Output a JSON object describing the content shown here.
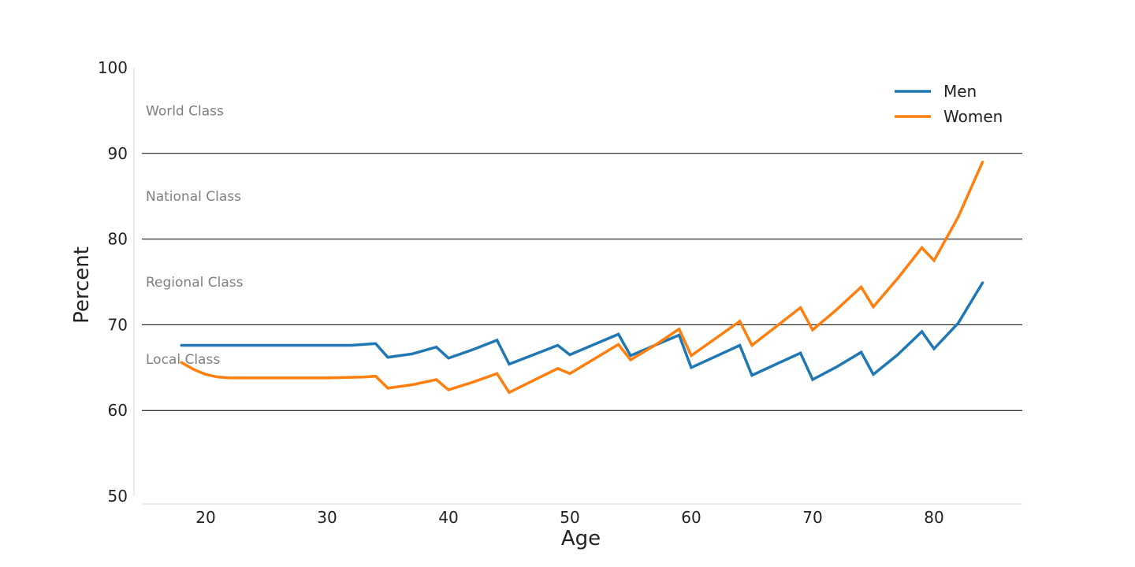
{
  "chart_data": {
    "type": "line",
    "xlabel": "Age",
    "ylabel": "Percent",
    "xlim": [
      15,
      88
    ],
    "ylim": [
      50,
      100
    ],
    "xticks": [
      20,
      30,
      40,
      50,
      60,
      70,
      80
    ],
    "yticks": [
      50,
      60,
      70,
      80,
      90,
      100
    ],
    "gridlines_y": [
      60,
      70,
      80,
      90
    ],
    "legend": {
      "placement": "top-right"
    },
    "bands": [
      {
        "label": "World Class",
        "y": 95
      },
      {
        "label": "National Class",
        "y": 85
      },
      {
        "label": "Regional Class",
        "y": 75
      },
      {
        "label": "Local Class",
        "y": 66
      }
    ],
    "series": [
      {
        "name": "Men",
        "color": "#1f77b4",
        "points": [
          [
            18,
            67.6
          ],
          [
            22,
            67.6
          ],
          [
            26,
            67.6
          ],
          [
            30,
            67.6
          ],
          [
            32,
            67.6
          ],
          [
            33,
            67.7
          ],
          [
            34,
            67.8
          ],
          [
            35,
            66.2
          ],
          [
            37,
            66.6
          ],
          [
            39,
            67.4
          ],
          [
            40,
            66.1
          ],
          [
            42,
            67.1
          ],
          [
            44,
            68.2
          ],
          [
            45,
            65.4
          ],
          [
            47,
            66.5
          ],
          [
            49,
            67.6
          ],
          [
            50,
            66.5
          ],
          [
            52,
            67.7
          ],
          [
            54,
            68.9
          ],
          [
            55,
            66.4
          ],
          [
            57,
            67.6
          ],
          [
            59,
            68.8
          ],
          [
            60,
            65.0
          ],
          [
            62,
            66.3
          ],
          [
            64,
            67.6
          ],
          [
            65,
            64.1
          ],
          [
            67,
            65.4
          ],
          [
            69,
            66.7
          ],
          [
            70,
            63.6
          ],
          [
            72,
            65.1
          ],
          [
            74,
            66.8
          ],
          [
            75,
            64.2
          ],
          [
            77,
            66.5
          ],
          [
            79,
            69.2
          ],
          [
            80,
            67.2
          ],
          [
            82,
            70.2
          ],
          [
            84,
            74.9
          ]
        ]
      },
      {
        "name": "Women",
        "color": "#ff7f0e",
        "points": [
          [
            18,
            65.6
          ],
          [
            19,
            64.8
          ],
          [
            20,
            64.2
          ],
          [
            21,
            63.9
          ],
          [
            22,
            63.8
          ],
          [
            26,
            63.8
          ],
          [
            30,
            63.8
          ],
          [
            33,
            63.9
          ],
          [
            34,
            64.0
          ],
          [
            35,
            62.6
          ],
          [
            37,
            63.0
          ],
          [
            39,
            63.6
          ],
          [
            40,
            62.4
          ],
          [
            42,
            63.3
          ],
          [
            44,
            64.3
          ],
          [
            45,
            62.1
          ],
          [
            47,
            63.5
          ],
          [
            49,
            64.9
          ],
          [
            50,
            64.3
          ],
          [
            52,
            66.0
          ],
          [
            54,
            67.7
          ],
          [
            55,
            65.9
          ],
          [
            57,
            67.6
          ],
          [
            59,
            69.5
          ],
          [
            60,
            66.4
          ],
          [
            62,
            68.4
          ],
          [
            64,
            70.4
          ],
          [
            65,
            67.6
          ],
          [
            67,
            69.8
          ],
          [
            69,
            72.0
          ],
          [
            70,
            69.4
          ],
          [
            72,
            71.8
          ],
          [
            74,
            74.4
          ],
          [
            75,
            72.1
          ],
          [
            77,
            75.4
          ],
          [
            79,
            79.0
          ],
          [
            80,
            77.5
          ],
          [
            82,
            82.6
          ],
          [
            84,
            89.0
          ]
        ]
      }
    ]
  }
}
